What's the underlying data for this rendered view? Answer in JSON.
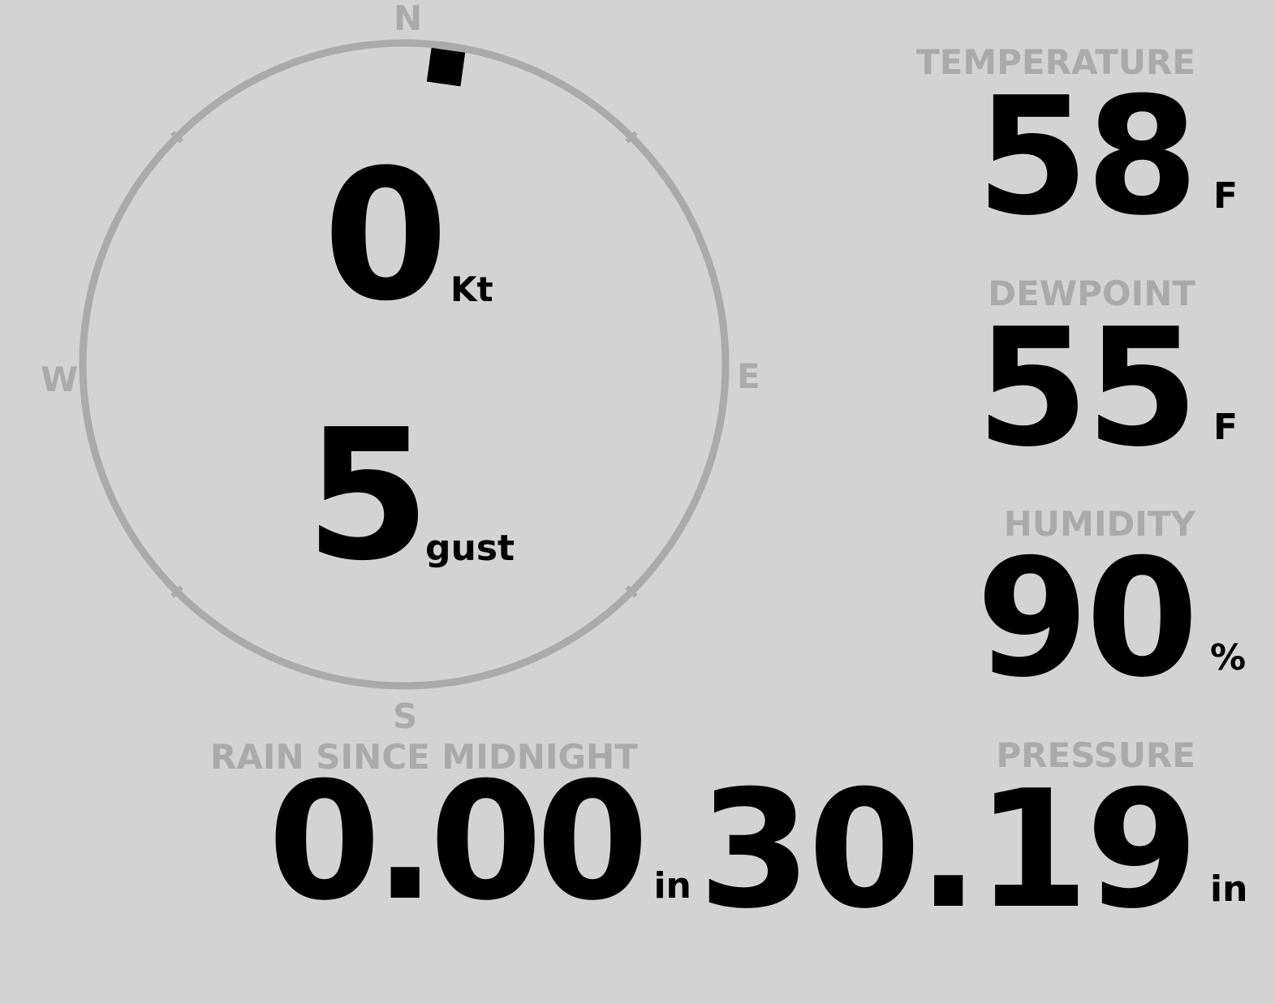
{
  "compass": {
    "n": "N",
    "e": "E",
    "s": "S",
    "w": "W",
    "wind_direction_deg": 8,
    "ring_color": "#aaaaaa",
    "marker_color": "#000000"
  },
  "wind": {
    "speed": "0",
    "speed_unit": "Kt",
    "gust": "5",
    "gust_unit": "gust"
  },
  "temperature": {
    "label": "TEMPERATURE",
    "value": "58",
    "unit": "F"
  },
  "dewpoint": {
    "label": "DEWPOINT",
    "value": "55",
    "unit": "F"
  },
  "humidity": {
    "label": "HUMIDITY",
    "value": "90",
    "unit": "%"
  },
  "pressure": {
    "label": "PRESSURE",
    "value": "30.19",
    "unit": "in"
  },
  "rain": {
    "label": "RAIN SINCE MIDNIGHT",
    "value": "0.00",
    "unit": "in"
  }
}
